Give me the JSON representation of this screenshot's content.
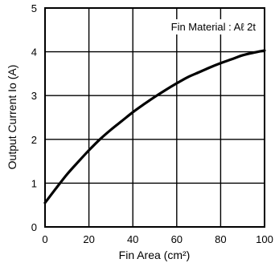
{
  "chart_data": {
    "type": "line",
    "title": "",
    "xlabel": "Fin Area (cm²)",
    "ylabel": "Output Current Io (A)",
    "xlim": [
      0,
      100
    ],
    "ylim": [
      0,
      5
    ],
    "xticks": [
      0,
      20,
      40,
      60,
      80,
      100
    ],
    "yticks": [
      0,
      1,
      2,
      3,
      4,
      5
    ],
    "grid": true,
    "annotation": "Fin Material : Aℓ 2t",
    "series": [
      {
        "x": [
          0,
          5,
          10,
          15,
          20,
          25,
          30,
          35,
          40,
          45,
          50,
          55,
          60,
          65,
          70,
          75,
          80,
          85,
          90,
          95,
          100
        ],
        "values": [
          0.55,
          0.88,
          1.2,
          1.48,
          1.75,
          2.0,
          2.22,
          2.42,
          2.62,
          2.8,
          2.97,
          3.13,
          3.28,
          3.42,
          3.53,
          3.64,
          3.74,
          3.83,
          3.92,
          3.98,
          4.03
        ]
      }
    ]
  }
}
